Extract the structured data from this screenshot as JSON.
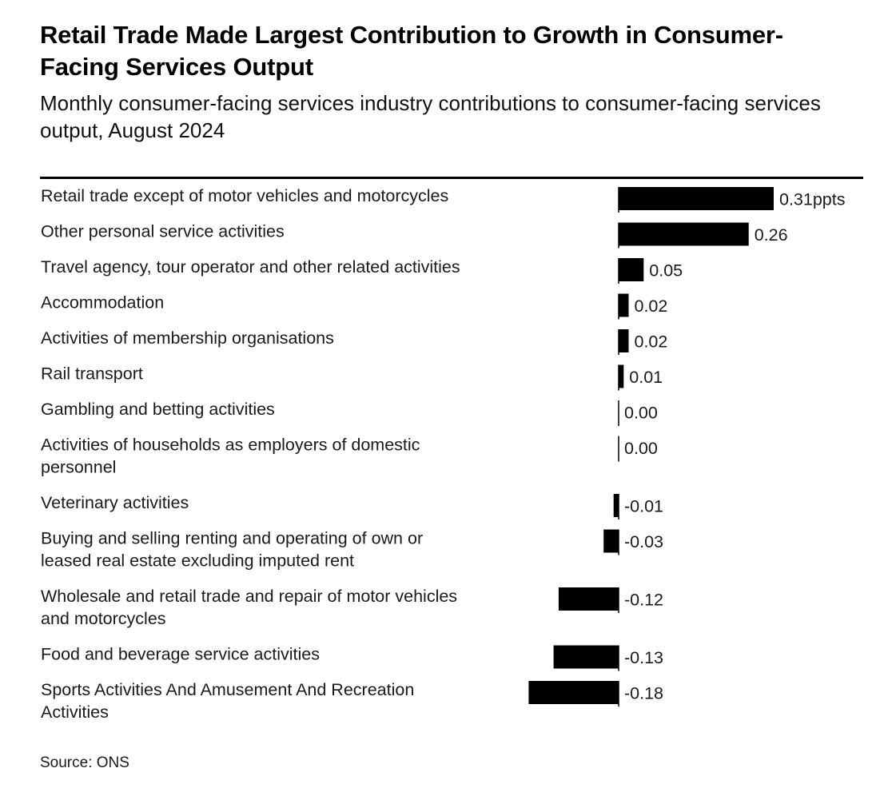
{
  "chart_data": {
    "type": "bar",
    "orientation": "horizontal",
    "title": "Retail Trade Made Largest Contribution to Growth in Consumer-Facing Services Output",
    "subtitle": "Monthly consumer-facing services industry contributions to consumer-facing services output, August 2024",
    "source": "Source: ONS",
    "bar_color": "#000000",
    "xlim": [
      -0.18,
      0.31
    ],
    "grid": false,
    "legend": "none",
    "rows": [
      {
        "category": [
          "Retail trade except of motor vehicles and motorcycles"
        ],
        "value": 0.31,
        "label": "0.31ppts"
      },
      {
        "category": [
          "Other personal service activities"
        ],
        "value": 0.26,
        "label": "0.26"
      },
      {
        "category": [
          "Travel agency, tour operator and other related activities"
        ],
        "value": 0.05,
        "label": "0.05"
      },
      {
        "category": [
          "Accommodation"
        ],
        "value": 0.02,
        "label": "0.02"
      },
      {
        "category": [
          "Activities of membership organisations"
        ],
        "value": 0.02,
        "label": "0.02"
      },
      {
        "category": [
          "Rail transport"
        ],
        "value": 0.01,
        "label": "0.01"
      },
      {
        "category": [
          "Gambling and betting activities"
        ],
        "value": 0.0,
        "label": "0.00"
      },
      {
        "category": [
          "Activities of households as employers of domestic",
          "personnel"
        ],
        "value": 0.0,
        "label": "0.00"
      },
      {
        "category": [
          "Veterinary activities"
        ],
        "value": -0.01,
        "label": "-0.01"
      },
      {
        "category": [
          "Buying and selling renting and operating of own or",
          "leased real estate excluding imputed rent"
        ],
        "value": -0.03,
        "label": "-0.03"
      },
      {
        "category": [
          "Wholesale and retail trade and repair of motor vehicles",
          "and motorcycles"
        ],
        "value": -0.12,
        "label": "-0.12"
      },
      {
        "category": [
          "Food and beverage service activities"
        ],
        "value": -0.13,
        "label": "-0.13"
      },
      {
        "category": [
          "Sports Activities And Amusement And Recreation",
          "Activities"
        ],
        "value": -0.18,
        "label": "-0.18"
      }
    ]
  }
}
